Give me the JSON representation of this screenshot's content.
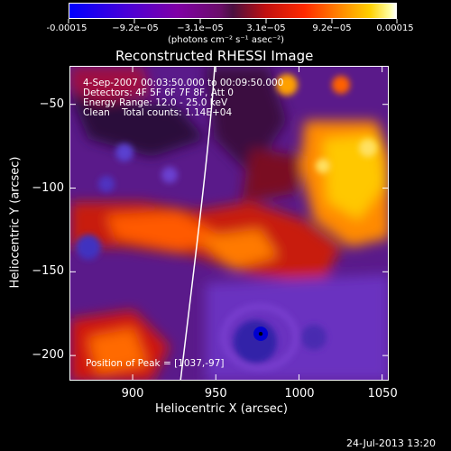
{
  "colorbar": {
    "tick_labels": [
      "-0.00015",
      "−9.2e−05",
      "−3.1e−05",
      "3.1e−05",
      "9.2e−05",
      "0.00015"
    ],
    "units": "(photons cm⁻² s⁻¹ asec⁻²)"
  },
  "chart_data": {
    "type": "heatmap",
    "title": "Reconstructed RHESSI Image",
    "xlabel": "Heliocentric X (arcsec)",
    "ylabel": "Heliocentric Y (arcsec)",
    "xlim": [
      862,
      1054
    ],
    "ylim": [
      -215,
      -27
    ],
    "x_ticks": [
      900,
      950,
      1000,
      1050
    ],
    "y_ticks": [
      -50,
      -100,
      -150,
      -200
    ],
    "color_range": [
      -0.00015,
      0.00015
    ],
    "peak": [
      1037,
      -97
    ],
    "marker": [
      977,
      -187
    ],
    "annotations": [
      "4-Sep-2007 00:03:50.000 to 00:09:50.000",
      "Detectors: 4F 5F 6F 7F 8F, Att 0",
      "Energy Range: 12.0 - 25.0 keV",
      "Clean    Total counts: 1.14E+04"
    ],
    "peak_label": "Position of Peak = [1037,-97]"
  },
  "footer": {
    "timestamp": "24-Jul-2013 13:20"
  }
}
